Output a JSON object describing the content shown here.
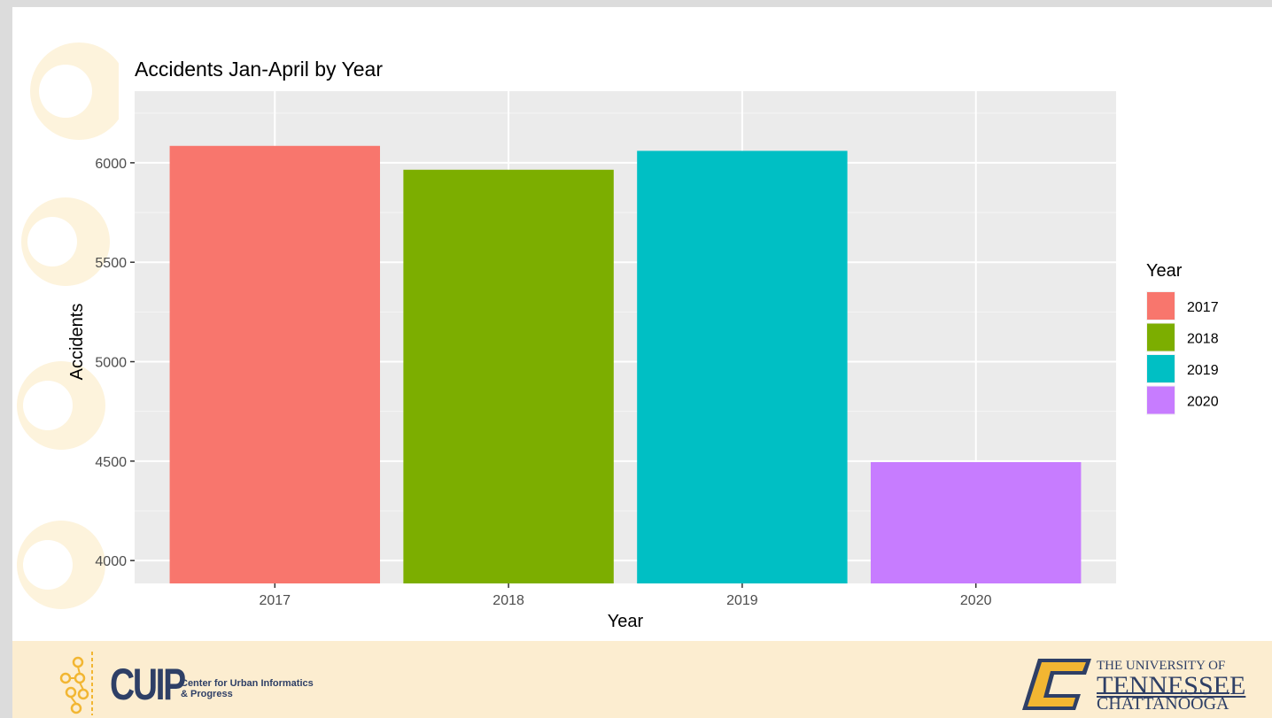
{
  "chart_data": {
    "type": "bar",
    "title": "Accidents Jan-April by Year",
    "xlabel": "Year",
    "ylabel": "Accidents",
    "categories": [
      "2017",
      "2018",
      "2019",
      "2020"
    ],
    "values": [
      6085,
      5965,
      6060,
      4495
    ],
    "ylim": [
      3885,
      6360
    ],
    "yticks": [
      4000,
      4500,
      5000,
      5500,
      6000
    ],
    "colors": [
      "#F8766D",
      "#7CAE00",
      "#00BFC4",
      "#C77CFF"
    ],
    "grid": true,
    "panel_background": "#EBEBEB",
    "legend": {
      "title": "Year",
      "position": "right",
      "entries": [
        "2017",
        "2018",
        "2019",
        "2020"
      ]
    }
  },
  "footer": {
    "cuip_name": "CUIP",
    "cuip_subtitle": "Center for Urban Informatics & Progress",
    "utc_line1": "THE UNIVERSITY OF",
    "utc_line2": "TENNESSEE",
    "utc_line3": "CHATTANOOGA",
    "brand_navy": "#2E3F66",
    "brand_gold": "#F2B632",
    "background": "#FCEDD0"
  }
}
